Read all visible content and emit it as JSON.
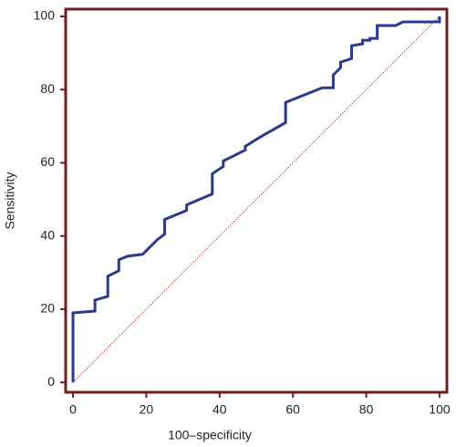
{
  "chart_data": {
    "type": "line",
    "x_label": "100–specificity",
    "y_label": "Sensitivity",
    "x": [
      0,
      0,
      6,
      6,
      9.5,
      9.5,
      12.5,
      12.5,
      15,
      19,
      23,
      25,
      25,
      31,
      31,
      38,
      38,
      41,
      41,
      47,
      47,
      51,
      58,
      58,
      68,
      71,
      71,
      73,
      73,
      76,
      76,
      79,
      79,
      81,
      81,
      83,
      83,
      88,
      90,
      100,
      100
    ],
    "series": [
      {
        "color": "#2a3a8c",
        "values": [
          0,
          19,
          19.5,
          22.5,
          23.5,
          29,
          30.5,
          33.5,
          34.5,
          35,
          39,
          40.5,
          44.5,
          47,
          48.5,
          51.5,
          57,
          59,
          60.5,
          63.5,
          64.5,
          67,
          71,
          76.5,
          80.5,
          80.5,
          84,
          86,
          87.5,
          88.5,
          92,
          92.5,
          93.5,
          93.5,
          94,
          94,
          97.5,
          97.5,
          98.5,
          98.5,
          100
        ]
      }
    ],
    "diagonal_color": "#b03a30",
    "frame_color": "#6b1f1f",
    "xlim": [
      -2,
      102
    ],
    "ylim": [
      -2.7,
      102
    ],
    "xticks": [
      0,
      20,
      40,
      60,
      80,
      100
    ],
    "yticks": [
      0,
      20,
      40,
      60,
      80,
      100
    ]
  }
}
